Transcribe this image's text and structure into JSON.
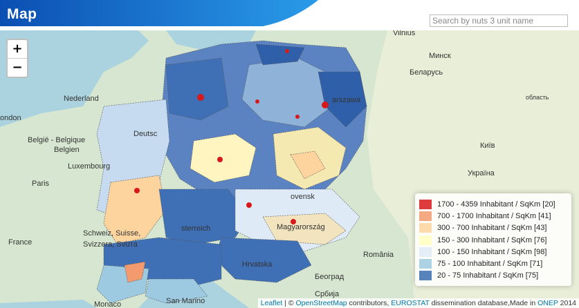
{
  "header": {
    "title": "Map",
    "search_placeholder": "Search by nuts 3 unit name",
    "gradient_start": "#0b4fb3",
    "gradient_end": "#2a9be8"
  },
  "zoom": {
    "in_label": "+",
    "out_label": "−"
  },
  "legend": {
    "items": [
      {
        "label": "1700 - 4359 Inhabitant / SqKm [20]",
        "color": "#d7191c"
      },
      {
        "label": "700 - 1700 Inhabitant / SqKm [41]",
        "color": "#f39a6e"
      },
      {
        "label": "300 - 700 Inhabitant / SqKm [43]",
        "color": "#fdd49e"
      },
      {
        "label": "150 - 300 Inhabitant / SqKm [76]",
        "color": "#ffffbf"
      },
      {
        "label": "100 - 150 Inhabitant / SqKm [98]",
        "color": "#deebf7"
      },
      {
        "label": "75 - 100 Inhabitant / SqKm [71]",
        "color": "#9ecae1"
      },
      {
        "label": "20 - 75 Inhabitant / SqKm [75]",
        "color": "#3a6db3"
      }
    ]
  },
  "attribution": {
    "leaflet": "Leaflet",
    "sep1": " | © ",
    "osm": "OpenStreetMap",
    "mid1": " contributors, ",
    "eurostat": "EUROSTAT",
    "mid2": " dissemination database,Made in ",
    "onep": "ONEP",
    "tail": " 2014"
  },
  "base_labels": {
    "vilnius": "Vilnius",
    "minsk": "Минск",
    "belarus": "Беларусь",
    "nederland": "Nederland",
    "london": "ondon",
    "belgie": "België - Belgique",
    "belgien": "Belgien",
    "luxembourg": "Luxembourg",
    "paris": "Paris",
    "france": "France",
    "schweiz": "Schweiz, Suisse,",
    "svizzera": "Svizzera, Svizra",
    "deutschland": "Deutsc",
    "warszawa": "arszawa",
    "kyiv": "Київ",
    "ukraina": "Україна",
    "hrvatska": "Hrvatska",
    "romania": "România",
    "beograd": "Београд",
    "srbija": "Србија",
    "monaco": "Monaco",
    "sanmarino": "San Marino",
    "slovensko": "ovensk",
    "osterreich": "sterreich",
    "magyarorszag": "Magyarország",
    "oblast": "область"
  }
}
